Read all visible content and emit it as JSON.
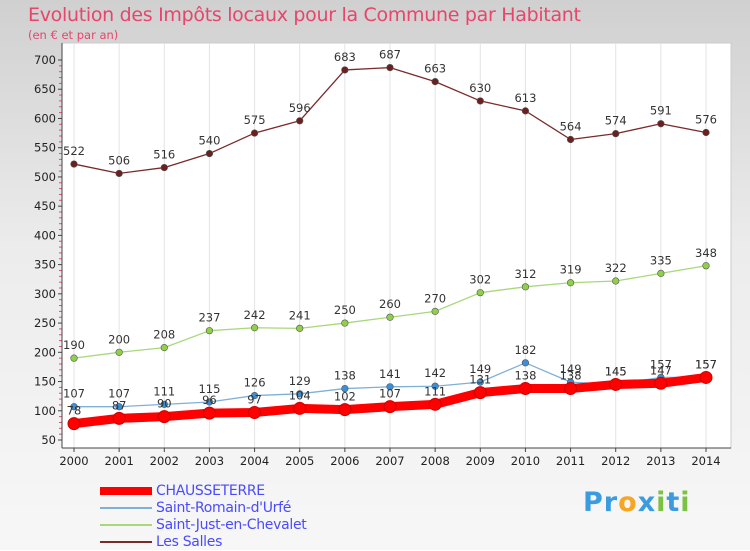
{
  "header": {
    "title": "Evolution des Impôts locaux pour la Commune par Habitant",
    "subtitle": "(en € et par an)"
  },
  "chart_data": {
    "type": "line",
    "title": "Evolution des Impôts locaux pour la Commune par Habitant",
    "ylabel": "(en € et par an)",
    "xlabel": "",
    "ylim": [
      50,
      700
    ],
    "yticks": [
      50,
      100,
      150,
      200,
      250,
      300,
      350,
      400,
      450,
      500,
      550,
      600,
      650,
      700
    ],
    "categories": [
      "2000",
      "2001",
      "2002",
      "2003",
      "2004",
      "2005",
      "2006",
      "2007",
      "2008",
      "2009",
      "2010",
      "2011",
      "2012",
      "2013",
      "2014"
    ],
    "series": [
      {
        "name": "Les Salles",
        "color": "#6b1f1f",
        "line_color": "#7a2a2a",
        "values": [
          522,
          506,
          516,
          540,
          575,
          596,
          683,
          687,
          663,
          630,
          613,
          564,
          574,
          591,
          576
        ]
      },
      {
        "name": "Saint-Just-en-Chevalet",
        "color": "#8fcf4a",
        "line_color": "#a8d87a",
        "values": [
          190,
          200,
          208,
          237,
          242,
          241,
          250,
          260,
          270,
          302,
          312,
          319,
          322,
          335,
          348
        ]
      },
      {
        "name": "Saint-Romain-d'Urfé",
        "color": "#3a8fd6",
        "line_color": "#7fb0d8",
        "values": [
          107,
          107,
          111,
          115,
          126,
          129,
          138,
          141,
          142,
          149,
          182,
          149,
          145,
          157,
          157
        ]
      },
      {
        "name": "CHAUSSETERRE",
        "color": "#ff0000",
        "line_color": "#ff0000",
        "values": [
          78,
          87,
          90,
          96,
          97,
          104,
          102,
          107,
          111,
          131,
          138,
          138,
          145,
          147,
          157
        ]
      }
    ],
    "legend_position": "bottom-left"
  },
  "legend": {
    "items": [
      {
        "label": "CHAUSSETERRE",
        "color": "#ff0000"
      },
      {
        "label": "Saint-Romain-d'Urfé",
        "color": "#7fb0d8"
      },
      {
        "label": "Saint-Just-en-Chevalet",
        "color": "#a8d87a"
      },
      {
        "label": "Les Salles",
        "color": "#7a2a2a"
      }
    ]
  },
  "branding": {
    "logo_text": "Proxiti",
    "letters": [
      "P",
      "r",
      "o",
      "x",
      "i",
      "t",
      "i"
    ],
    "letter_colors": [
      "#3a9be0",
      "#3a9be0",
      "#f5a623",
      "#3a9be0",
      "#7cc242",
      "#3a9be0",
      "#7cc242"
    ]
  }
}
